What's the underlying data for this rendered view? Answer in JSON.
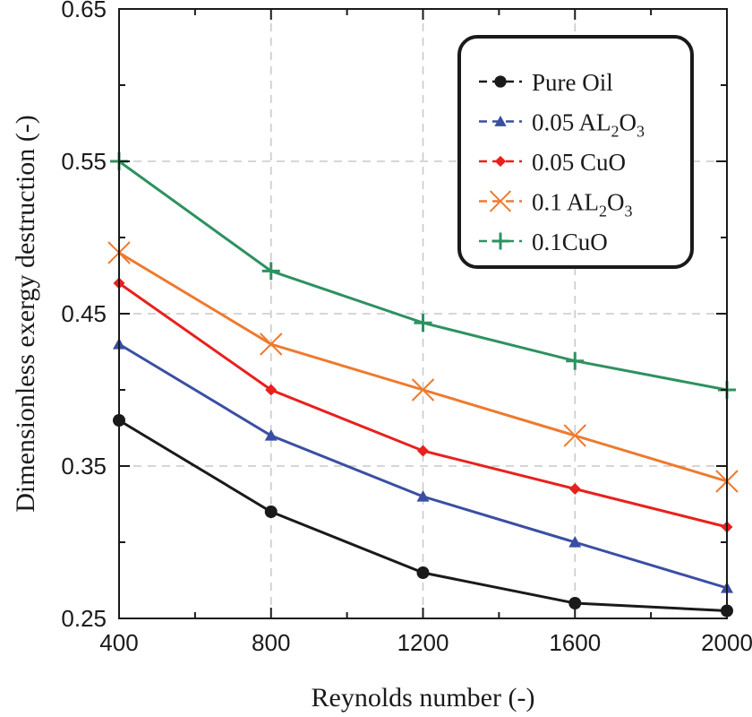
{
  "chart_data": {
    "type": "line",
    "title": "",
    "xlabel": "Reynolds number (-)",
    "ylabel": "Dimensionless exergy destruction (-)",
    "x": [
      400,
      800,
      1200,
      1600,
      2000
    ],
    "xlim": [
      400,
      2000
    ],
    "ylim": [
      0.25,
      0.65
    ],
    "xticks": [
      400,
      800,
      1200,
      1600,
      2000
    ],
    "xtick_labels": [
      "400",
      "800",
      "1200",
      "1600",
      "2000"
    ],
    "yticks": [
      0.25,
      0.35,
      0.45,
      0.55,
      0.65
    ],
    "ytick_labels": [
      "0.25",
      "0.35",
      "0.45",
      "0.55",
      "0.65"
    ],
    "grid": true,
    "legend_position": "top-right",
    "series": [
      {
        "name": "Pure Oil",
        "label_main": "Pure Oil",
        "color": "#1a1a1a",
        "marker": "circle",
        "values": [
          0.38,
          0.32,
          0.28,
          0.26,
          0.255
        ]
      },
      {
        "name": "0.05 AL2O3",
        "label_main": "0.05 AL",
        "sub1": "2",
        "mid": "O",
        "sub2": "3",
        "color": "#3a4fa3",
        "marker": "triangle",
        "values": [
          0.43,
          0.37,
          0.33,
          0.3,
          0.27
        ]
      },
      {
        "name": "0.05 CuO",
        "label_main": "0.05 CuO",
        "color": "#e8211d",
        "marker": "diamond",
        "values": [
          0.47,
          0.4,
          0.36,
          0.335,
          0.31
        ]
      },
      {
        "name": "0.1 AL2O3",
        "label_main": "0.1 AL",
        "sub1": "2",
        "mid": "O",
        "sub2": "3",
        "color": "#ee7a2f",
        "marker": "x",
        "values": [
          0.49,
          0.43,
          0.4,
          0.37,
          0.34
        ]
      },
      {
        "name": "0.1CuO",
        "label_main": "0.1CuO",
        "color": "#2e9160",
        "marker": "plus",
        "values": [
          0.55,
          0.478,
          0.444,
          0.419,
          0.4
        ]
      }
    ]
  }
}
